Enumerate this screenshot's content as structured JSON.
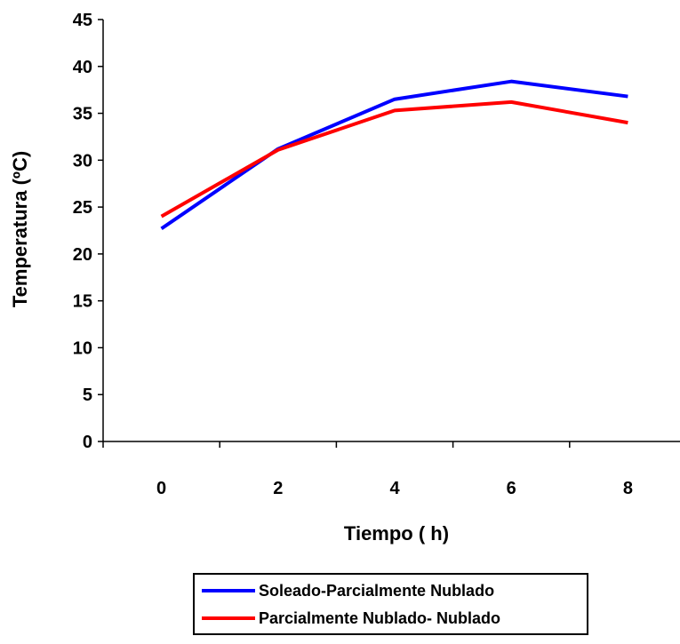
{
  "chart_data": {
    "type": "line",
    "xlabel": "Tiempo ( h)",
    "ylabel": "Temperatura (ºC)",
    "x": [
      0,
      2,
      4,
      6,
      8
    ],
    "xticks": [
      "0",
      "2",
      "4",
      "6",
      "8"
    ],
    "yticks": [
      "0",
      "5",
      "10",
      "15",
      "20",
      "25",
      "30",
      "35",
      "40",
      "45"
    ],
    "ylim": [
      0,
      45
    ],
    "grid": false,
    "legend_position": "bottom",
    "series": [
      {
        "name": "Soleado-Parcialmente Nublado",
        "color": "#0000ff",
        "values": [
          22.7,
          31.2,
          36.5,
          38.4,
          36.8
        ]
      },
      {
        "name": "Parcialmente Nublado- Nublado",
        "color": "#ff0000",
        "values": [
          24.0,
          31.1,
          35.3,
          36.2,
          34.0
        ]
      }
    ]
  }
}
